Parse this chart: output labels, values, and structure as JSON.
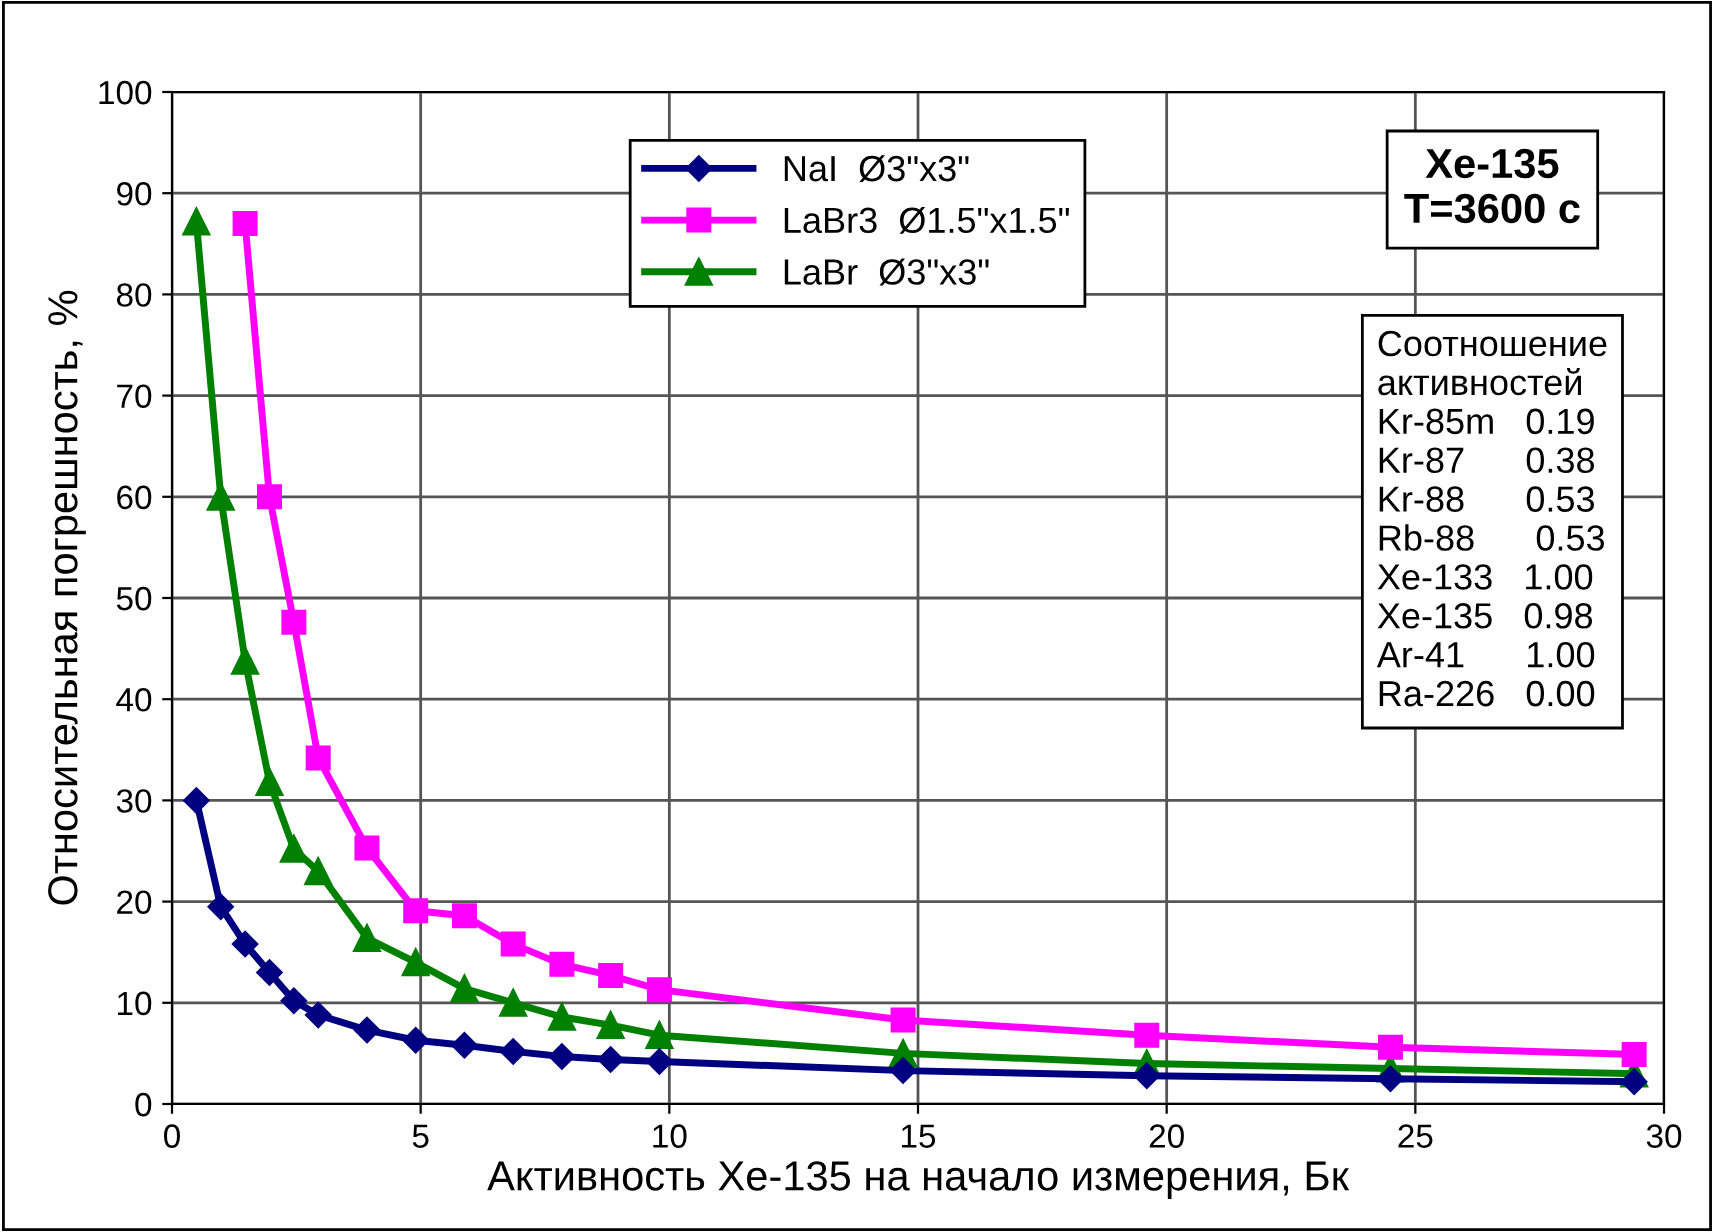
{
  "chart_data": {
    "type": "line",
    "xlabel": "Активность Xe-135 на начало измерения, Бк",
    "ylabel": "Относительная погрешность, %",
    "xlim": [
      0,
      30
    ],
    "xticks": [
      0,
      5,
      10,
      15,
      20,
      25,
      30
    ],
    "ylim": [
      0,
      100
    ],
    "yticks": [
      0,
      10,
      20,
      30,
      40,
      50,
      60,
      70,
      80,
      90,
      100
    ],
    "grid": true,
    "legend": "top",
    "line_style": "solid",
    "series": [
      {
        "name": "NaI  Ø3\"x3\"",
        "color": "#000080",
        "marker": "diamond",
        "x": [
          0.49,
          0.98,
          1.47,
          1.96,
          2.45,
          2.94,
          3.92,
          4.9,
          5.88,
          6.86,
          7.84,
          8.82,
          9.8,
          14.7,
          19.6,
          24.5,
          29.4
        ],
        "values": [
          30,
          19.5,
          15.8,
          13,
          10.2,
          8.8,
          7.3,
          6.3,
          5.8,
          5.2,
          4.7,
          4.4,
          4.2,
          3.3,
          2.8,
          2.5,
          2.2
        ]
      },
      {
        "name": "LaBr3  Ø1.5\"x1.5\"",
        "color": "#ff00ff",
        "marker": "square",
        "x": [
          1.47,
          1.96,
          2.45,
          2.94,
          3.92,
          4.9,
          5.88,
          6.86,
          7.84,
          8.82,
          9.8,
          14.7,
          19.6,
          24.5,
          29.4
        ],
        "values": [
          87,
          60,
          47.6,
          34.2,
          25.3,
          19.1,
          18.6,
          15.8,
          13.8,
          12.7,
          11.3,
          8.3,
          6.8,
          5.6,
          4.9
        ]
      },
      {
        "name": "LaBr  Ø3\"x3\"",
        "color": "#008000",
        "marker": "triangle",
        "x": [
          0.49,
          0.98,
          1.47,
          1.96,
          2.45,
          2.94,
          3.92,
          4.9,
          5.88,
          6.86,
          7.84,
          8.82,
          9.8,
          14.7,
          19.6,
          24.5,
          29.4
        ],
        "values": [
          87.2,
          60,
          43.8,
          31.8,
          25.2,
          23,
          16.4,
          14,
          11.4,
          10,
          8.6,
          7.8,
          6.8,
          5,
          4,
          3.5,
          3.0
        ]
      }
    ],
    "annotations": [
      "Xe-135\nT=3600 с",
      "Соотношение\nактивностей\nKr-85m   0.19\nKr-87      0.38\nKr-88      0.53\nRb-88      0.53\nXe-133   1.00\nXe-135   0.98\nAr-41      1.00\nRa-226   0.00"
    ]
  }
}
